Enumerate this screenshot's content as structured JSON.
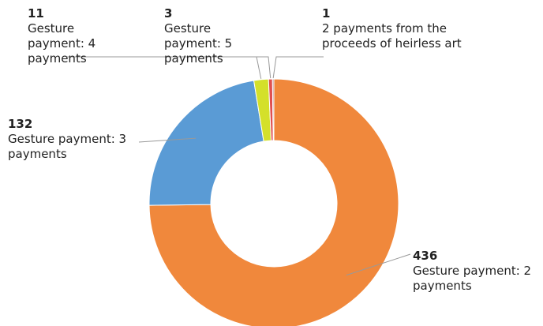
{
  "chart_data": {
    "type": "donut",
    "categories": [
      "Gesture payment: 2 payments",
      "Gesture payment: 3 payments",
      "Gesture payment: 4 payments",
      "Gesture payment: 5 payments",
      "2 payments from the proceeds of heirless art"
    ],
    "values": [
      436,
      132,
      11,
      3,
      1
    ],
    "colors": [
      "#f0883c",
      "#5a9bd5",
      "#d4e02a",
      "#e05050",
      "#b88080"
    ]
  }
}
